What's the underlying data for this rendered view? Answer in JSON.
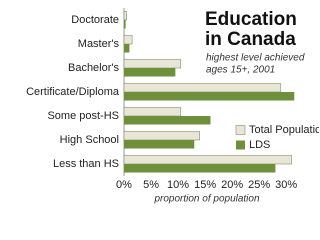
{
  "chart_data": {
    "type": "hbar",
    "title": [
      "Education",
      "in Canada"
    ],
    "subtitle": [
      "highest level achieved",
      "ages 15+, 2001"
    ],
    "x_label": "proportion of population",
    "categories": [
      "Doctorate",
      "Master's",
      "Bachelor's",
      "Certificate/Diploma",
      "Some post-HS",
      "High School",
      "Less than HS"
    ],
    "series": [
      {
        "name": "Total Population",
        "color": "#e8e6d4",
        "values": [
          0.5,
          1.5,
          10.5,
          29,
          10.5,
          14,
          31
        ]
      },
      {
        "name": "LDS",
        "color": "#6e8f3c",
        "values": [
          0.3,
          1,
          9.5,
          31.5,
          16,
          13,
          28
        ]
      }
    ],
    "xlim": [
      0,
      32
    ],
    "xticks": [
      {
        "value": 0,
        "label": "0%"
      },
      {
        "value": 5,
        "label": "5%"
      },
      {
        "value": 10,
        "label": "10%"
      },
      {
        "value": 15,
        "label": "15%"
      },
      {
        "value": 20,
        "label": "20%"
      },
      {
        "value": 25,
        "label": "25%"
      },
      {
        "value": 30,
        "label": "30%"
      }
    ],
    "grid": false
  }
}
